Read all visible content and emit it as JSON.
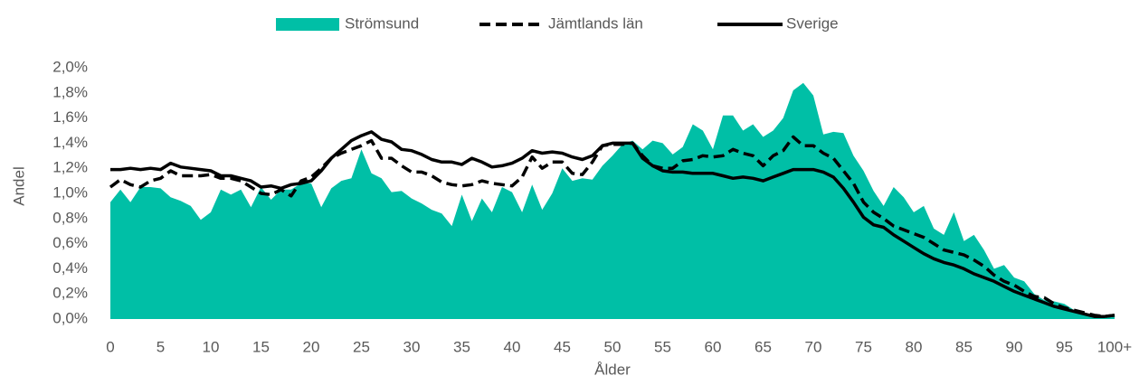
{
  "chart_data": {
    "type": "line",
    "x_label": "Ålder",
    "y_label": "Andel",
    "categories": [
      "0",
      null,
      null,
      null,
      null,
      "5",
      null,
      null,
      null,
      null,
      "10",
      null,
      null,
      null,
      null,
      "15",
      null,
      null,
      null,
      null,
      "20",
      null,
      null,
      null,
      null,
      "25",
      null,
      null,
      null,
      null,
      "30",
      null,
      null,
      null,
      null,
      "35",
      null,
      null,
      null,
      null,
      "40",
      null,
      null,
      null,
      null,
      "45",
      null,
      null,
      null,
      null,
      "50",
      null,
      null,
      null,
      null,
      "55",
      null,
      null,
      null,
      null,
      "60",
      null,
      null,
      null,
      null,
      "65",
      null,
      null,
      null,
      null,
      "70",
      null,
      null,
      null,
      null,
      "75",
      null,
      null,
      null,
      null,
      "80",
      null,
      null,
      null,
      null,
      "85",
      null,
      null,
      null,
      null,
      "90",
      null,
      null,
      null,
      null,
      "95",
      null,
      null,
      null,
      null,
      "100+"
    ],
    "ylim": [
      0,
      2.0
    ],
    "yticks": [
      {
        "value": 0,
        "label": "0,0%"
      },
      {
        "value": 0.2,
        "label": "0,2%"
      },
      {
        "value": 0.4,
        "label": "0,4%"
      },
      {
        "value": 0.6,
        "label": "0,6%"
      },
      {
        "value": 0.8,
        "label": "0,8%"
      },
      {
        "value": 1.0,
        "label": "1,0%"
      },
      {
        "value": 1.2,
        "label": "1,2%"
      },
      {
        "value": 1.4,
        "label": "1,4%"
      },
      {
        "value": 1.6,
        "label": "1,6%"
      },
      {
        "value": 1.8,
        "label": "1,8%"
      },
      {
        "value": 2.0,
        "label": "2,0%"
      }
    ],
    "legend": "top",
    "series": [
      {
        "name": "Strömsund",
        "color": "#00bfa6",
        "style": "area",
        "values": [
          0.93,
          1.03,
          0.93,
          1.05,
          1.05,
          1.04,
          0.97,
          0.94,
          0.9,
          0.79,
          0.85,
          1.03,
          0.99,
          1.03,
          0.89,
          1.05,
          0.95,
          1.03,
          1.03,
          1.08,
          1.08,
          0.89,
          1.04,
          1.1,
          1.12,
          1.35,
          1.16,
          1.12,
          1.01,
          1.02,
          0.96,
          0.92,
          0.87,
          0.84,
          0.74,
          0.99,
          0.78,
          0.96,
          0.85,
          1.05,
          1.01,
          0.85,
          1.07,
          0.87,
          1.0,
          1.2,
          1.1,
          1.12,
          1.11,
          1.22,
          1.3,
          1.39,
          1.42,
          1.35,
          1.42,
          1.4,
          1.31,
          1.37,
          1.55,
          1.5,
          1.35,
          1.62,
          1.62,
          1.5,
          1.55,
          1.45,
          1.5,
          1.6,
          1.82,
          1.88,
          1.78,
          1.47,
          1.49,
          1.48,
          1.3,
          1.18,
          1.02,
          0.9,
          1.05,
          0.97,
          0.85,
          0.9,
          0.72,
          0.67,
          0.85,
          0.62,
          0.67,
          0.55,
          0.4,
          0.43,
          0.33,
          0.3,
          0.2,
          0.15,
          0.14,
          0.12,
          0.07,
          0.04,
          0.03,
          0.02,
          0.03
        ]
      },
      {
        "name": "Jämtlands län",
        "color": "#000000",
        "style": "dashed",
        "values": [
          1.05,
          1.11,
          1.07,
          1.05,
          1.1,
          1.12,
          1.18,
          1.14,
          1.14,
          1.14,
          1.15,
          1.12,
          1.12,
          1.1,
          1.05,
          1.0,
          0.99,
          1.03,
          0.98,
          1.1,
          1.13,
          1.2,
          1.28,
          1.32,
          1.35,
          1.38,
          1.42,
          1.28,
          1.28,
          1.22,
          1.17,
          1.17,
          1.14,
          1.09,
          1.07,
          1.06,
          1.07,
          1.1,
          1.08,
          1.07,
          1.06,
          1.13,
          1.29,
          1.2,
          1.25,
          1.25,
          1.16,
          1.15,
          1.25,
          1.38,
          1.39,
          1.39,
          1.4,
          1.3,
          1.22,
          1.2,
          1.2,
          1.26,
          1.27,
          1.3,
          1.29,
          1.3,
          1.35,
          1.32,
          1.3,
          1.22,
          1.3,
          1.34,
          1.45,
          1.38,
          1.38,
          1.32,
          1.28,
          1.18,
          1.08,
          0.93,
          0.85,
          0.8,
          0.74,
          0.71,
          0.68,
          0.65,
          0.6,
          0.55,
          0.53,
          0.51,
          0.47,
          0.42,
          0.35,
          0.3,
          0.27,
          0.22,
          0.18,
          0.17,
          0.12,
          0.09,
          0.07,
          0.05,
          0.03,
          0.02,
          0.03
        ]
      },
      {
        "name": "Sverige",
        "color": "#000000",
        "style": "solid",
        "values": [
          1.19,
          1.19,
          1.2,
          1.19,
          1.2,
          1.19,
          1.24,
          1.21,
          1.2,
          1.19,
          1.18,
          1.14,
          1.14,
          1.12,
          1.1,
          1.05,
          1.06,
          1.04,
          1.07,
          1.08,
          1.1,
          1.18,
          1.28,
          1.35,
          1.42,
          1.46,
          1.49,
          1.43,
          1.41,
          1.35,
          1.34,
          1.31,
          1.27,
          1.25,
          1.25,
          1.23,
          1.28,
          1.25,
          1.21,
          1.22,
          1.24,
          1.28,
          1.34,
          1.32,
          1.33,
          1.32,
          1.29,
          1.27,
          1.3,
          1.38,
          1.4,
          1.4,
          1.4,
          1.28,
          1.22,
          1.18,
          1.17,
          1.17,
          1.16,
          1.16,
          1.16,
          1.14,
          1.12,
          1.13,
          1.12,
          1.1,
          1.13,
          1.16,
          1.19,
          1.19,
          1.19,
          1.17,
          1.13,
          1.04,
          0.93,
          0.81,
          0.75,
          0.73,
          0.67,
          0.62,
          0.57,
          0.52,
          0.48,
          0.45,
          0.43,
          0.4,
          0.36,
          0.33,
          0.3,
          0.26,
          0.22,
          0.19,
          0.16,
          0.13,
          0.1,
          0.08,
          0.06,
          0.04,
          0.02,
          0.02,
          0.03
        ]
      }
    ]
  }
}
